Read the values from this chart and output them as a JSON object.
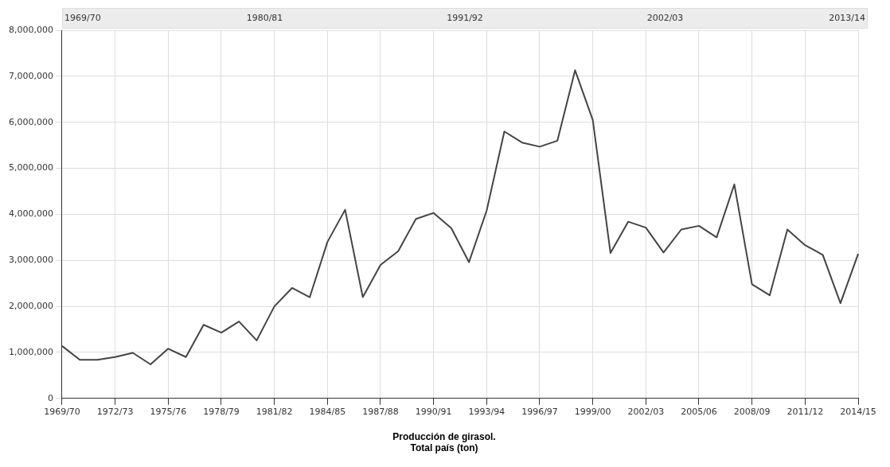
{
  "chart_data": {
    "type": "line",
    "title": "Producción de girasol.",
    "subtitle": "Total país (ton)",
    "categories": [
      "1969/70",
      null,
      null,
      "1972/73",
      null,
      null,
      "1975/76",
      null,
      null,
      "1978/79",
      null,
      null,
      "1981/82",
      null,
      null,
      "1984/85",
      null,
      null,
      "1987/88",
      null,
      null,
      "1990/91",
      null,
      null,
      "1993/94",
      null,
      null,
      "1996/97",
      null,
      null,
      "1999/00",
      null,
      null,
      "2002/03",
      null,
      null,
      "2005/06",
      null,
      null,
      "2008/09",
      null,
      null,
      "2011/12",
      null,
      null,
      "2014/15"
    ],
    "series": [
      {
        "color": "#444444",
        "values": [
          1140000,
          840000,
          840000,
          900000,
          990000,
          740000,
          1080000,
          900000,
          1600000,
          1430000,
          1670000,
          1260000,
          2000000,
          2400000,
          2200000,
          3400000,
          4100000,
          2200000,
          2900000,
          3200000,
          3900000,
          4030000,
          3700000,
          2960000,
          4080000,
          5800000,
          5560000,
          5470000,
          5600000,
          7130000,
          6050000,
          3160000,
          3840000,
          3710000,
          3170000,
          3670000,
          3750000,
          3500000,
          4650000,
          2480000,
          2240000,
          3670000,
          3330000,
          3120000,
          2070000,
          3140000
        ]
      }
    ],
    "ylim": [
      0,
      8000000
    ],
    "yticks": [
      0,
      {
        "value": 1000000,
        "label": "1,000,000"
      },
      {
        "value": 2000000,
        "label": "2,000,000"
      },
      {
        "value": 3000000,
        "label": "3,000,000"
      },
      {
        "value": 4000000,
        "label": "4,000,000"
      },
      {
        "value": 5000000,
        "label": "5,000,000"
      },
      {
        "value": 6000000,
        "label": "6,000,000"
      },
      {
        "value": 7000000,
        "label": "7,000,000"
      },
      {
        "value": 8000000,
        "label": "8,000,000"
      }
    ],
    "annotations": [
      "1969/70",
      "1980/81",
      "1991/92",
      "2002/03",
      "2013/14"
    ],
    "grid": true,
    "legend": false,
    "marker": "none",
    "line_style": "solid"
  }
}
